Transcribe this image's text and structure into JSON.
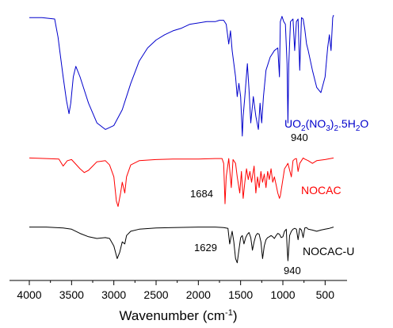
{
  "chart_data": {
    "type": "line",
    "xlabel": "Wavenumber",
    "xlabel_unit_prefix": "(cm",
    "xlabel_unit_sup": "-1",
    "xlabel_unit_suffix": ")",
    "xlim": [
      4000,
      400
    ],
    "x_reversed": true,
    "xticks": [
      4000,
      3500,
      3000,
      2500,
      2000,
      1500,
      1000,
      500
    ],
    "y_axis_shown": false,
    "grid": false,
    "legend": "labels placed beside each trace",
    "series": [
      {
        "name": "UO2(NO3)2.5H2O",
        "label_parts": [
          "UO",
          "2",
          "(NO",
          "3",
          ")",
          "2",
          ".5H",
          "2",
          "O"
        ],
        "color": "#0000cc",
        "x": [
          4000,
          3850,
          3700,
          3660,
          3640,
          3600,
          3560,
          3530,
          3510,
          3480,
          3450,
          3400,
          3300,
          3200,
          3100,
          3000,
          2900,
          2800,
          2700,
          2600,
          2500,
          2400,
          2300,
          2200,
          2100,
          1900,
          1800,
          1750,
          1700,
          1670,
          1640,
          1620,
          1600,
          1560,
          1540,
          1520,
          1500,
          1480,
          1470,
          1450,
          1420,
          1400,
          1380,
          1350,
          1320,
          1290,
          1270,
          1250,
          1230,
          1200,
          1150,
          1100,
          1060,
          1040,
          1030,
          1010,
          990,
          970,
          950,
          940,
          930,
          910,
          880,
          860,
          840,
          820,
          800,
          780,
          760,
          740,
          720,
          700,
          650,
          600,
          550,
          500,
          470,
          450,
          430,
          410,
          400
        ],
        "y": [
          0.95,
          0.95,
          0.94,
          0.8,
          0.7,
          0.5,
          0.32,
          0.22,
          0.3,
          0.5,
          0.58,
          0.5,
          0.3,
          0.15,
          0.1,
          0.13,
          0.25,
          0.45,
          0.62,
          0.72,
          0.78,
          0.82,
          0.85,
          0.87,
          0.9,
          0.92,
          0.92,
          0.93,
          0.93,
          0.9,
          0.75,
          0.85,
          0.7,
          0.5,
          0.35,
          0.45,
          0.35,
          0.05,
          0.2,
          0.35,
          0.6,
          0.4,
          0.15,
          0.35,
          0.2,
          0.1,
          0.3,
          0.15,
          0.35,
          0.55,
          0.65,
          0.7,
          0.72,
          0.5,
          0.92,
          0.96,
          0.92,
          0.9,
          0.6,
          0.15,
          0.6,
          0.92,
          0.94,
          0.7,
          0.92,
          0.94,
          0.55,
          0.95,
          0.94,
          0.86,
          0.75,
          0.7,
          0.55,
          0.42,
          0.38,
          0.5,
          0.72,
          0.82,
          0.7,
          0.95,
          0.97
        ]
      },
      {
        "name": "NOCAC",
        "color": "#ff0000",
        "x": [
          4000,
          3800,
          3650,
          3600,
          3550,
          3500,
          3400,
          3350,
          3300,
          3250,
          3200,
          3100,
          3050,
          3000,
          2970,
          2950,
          2920,
          2900,
          2870,
          2850,
          2800,
          2700,
          2500,
          2300,
          2000,
          1800,
          1720,
          1700,
          1684,
          1670,
          1640,
          1610,
          1590,
          1560,
          1540,
          1510,
          1490,
          1470,
          1450,
          1430,
          1410,
          1390,
          1370,
          1340,
          1320,
          1300,
          1280,
          1260,
          1240,
          1220,
          1200,
          1180,
          1160,
          1140,
          1120,
          1100,
          1080,
          1060,
          1040,
          1030,
          1000,
          980,
          960,
          940,
          900,
          880,
          860,
          840,
          820,
          800,
          780,
          760,
          740,
          700,
          650,
          600,
          500,
          400
        ],
        "y": [
          0.95,
          0.94,
          0.93,
          0.8,
          0.9,
          0.92,
          0.75,
          0.68,
          0.72,
          0.8,
          0.88,
          0.9,
          0.82,
          0.6,
          0.15,
          0.05,
          0.3,
          0.5,
          0.3,
          0.6,
          0.82,
          0.9,
          0.92,
          0.93,
          0.93,
          0.94,
          0.94,
          0.85,
          0.1,
          0.6,
          0.94,
          0.4,
          0.92,
          0.85,
          0.6,
          0.3,
          0.7,
          0.2,
          0.5,
          0.75,
          0.55,
          0.7,
          0.5,
          0.8,
          0.3,
          0.6,
          0.4,
          0.7,
          0.5,
          0.65,
          0.4,
          0.7,
          0.55,
          0.75,
          0.5,
          0.6,
          0.45,
          0.3,
          0.2,
          0.25,
          0.55,
          0.75,
          0.8,
          0.85,
          0.6,
          0.9,
          0.93,
          0.94,
          0.7,
          0.85,
          0.9,
          0.95,
          0.93,
          0.9,
          0.85,
          0.9,
          0.92,
          0.95
        ]
      },
      {
        "name": "NOCAC-U",
        "color": "#000000",
        "x": [
          4000,
          3800,
          3600,
          3500,
          3400,
          3300,
          3200,
          3100,
          3050,
          3000,
          2960,
          2930,
          2900,
          2870,
          2850,
          2800,
          2700,
          2500,
          2300,
          2000,
          1800,
          1700,
          1650,
          1629,
          1610,
          1600,
          1580,
          1560,
          1540,
          1520,
          1500,
          1480,
          1460,
          1440,
          1420,
          1400,
          1380,
          1360,
          1340,
          1320,
          1300,
          1280,
          1260,
          1240,
          1220,
          1200,
          1180,
          1160,
          1140,
          1120,
          1100,
          1080,
          1060,
          1040,
          1020,
          1000,
          980,
          960,
          950,
          940,
          930,
          920,
          900,
          880,
          860,
          840,
          820,
          800,
          780,
          760,
          740,
          720,
          700,
          650,
          600,
          550,
          500,
          450,
          400
        ],
        "y": [
          0.95,
          0.95,
          0.93,
          0.9,
          0.8,
          0.72,
          0.68,
          0.7,
          0.68,
          0.5,
          0.2,
          0.35,
          0.6,
          0.55,
          0.75,
          0.85,
          0.9,
          0.93,
          0.94,
          0.95,
          0.95,
          0.94,
          0.92,
          0.55,
          0.75,
          0.85,
          0.6,
          0.2,
          0.1,
          0.4,
          0.7,
          0.75,
          0.55,
          0.7,
          0.78,
          0.82,
          0.7,
          0.4,
          0.6,
          0.75,
          0.8,
          0.78,
          0.6,
          0.2,
          0.5,
          0.65,
          0.7,
          0.72,
          0.75,
          0.72,
          0.68,
          0.75,
          0.8,
          0.78,
          0.7,
          0.72,
          0.85,
          0.9,
          0.5,
          0.15,
          0.45,
          0.75,
          0.85,
          0.9,
          0.92,
          0.9,
          0.65,
          0.92,
          0.88,
          0.7,
          0.93,
          0.94,
          0.9,
          0.88,
          0.85,
          0.88,
          0.9,
          0.92,
          0.95
        ]
      }
    ],
    "annotations": [
      {
        "text": "940",
        "series": "UO2(NO3)2.5H2O"
      },
      {
        "text": "1684",
        "series": "NOCAC"
      },
      {
        "text": "1629",
        "series": "NOCAC-U"
      },
      {
        "text": "940",
        "series": "NOCAC-U"
      }
    ]
  }
}
